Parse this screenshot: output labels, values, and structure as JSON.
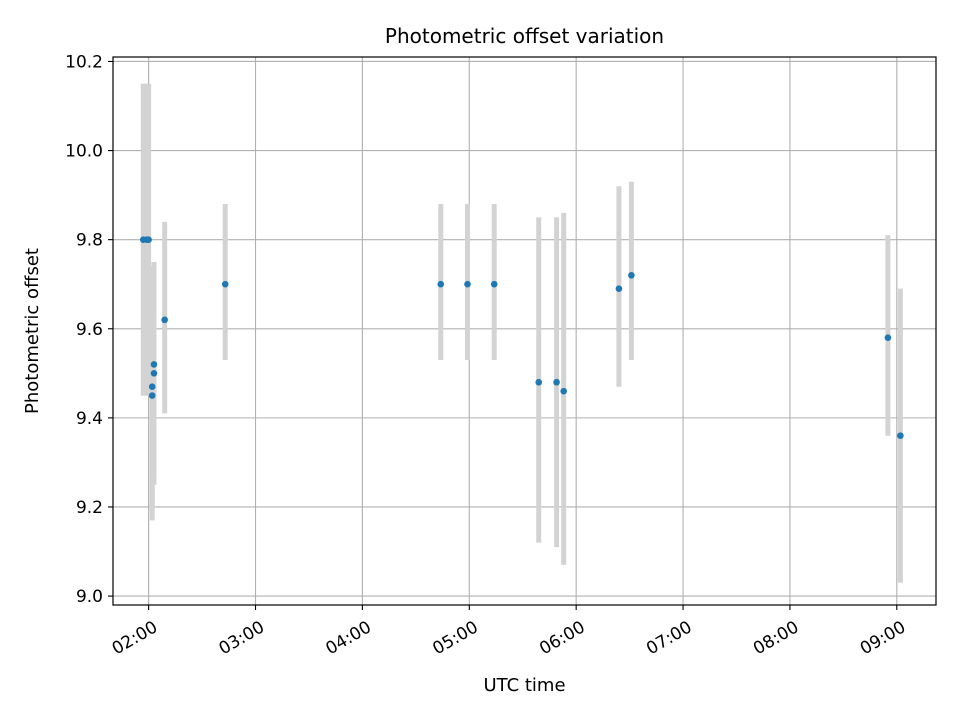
{
  "chart_data": {
    "type": "scatter",
    "title": "Photometric offset variation",
    "xlabel": "UTC time",
    "ylabel": "Photometric offset",
    "x_axis_kind": "time",
    "xlim": [
      "01:40",
      "09:22"
    ],
    "ylim": [
      8.98,
      10.21
    ],
    "x_ticks": [
      "02:00",
      "03:00",
      "04:00",
      "05:00",
      "06:00",
      "07:00",
      "08:00",
      "09:00"
    ],
    "y_ticks": [
      "9.0",
      "9.2",
      "9.4",
      "9.6",
      "9.8",
      "10.0",
      "10.2"
    ],
    "grid": true,
    "legend": "none",
    "colors": {
      "points": "#1f77b4",
      "error_bars": "#d3d3d3",
      "grid": "#b0b0b0",
      "axes": "#000000"
    },
    "series": [
      {
        "points": [
          {
            "x": "01:57",
            "y": 9.8,
            "y_low": 9.45,
            "y_high": 10.15
          },
          {
            "x": "01:59",
            "y": 9.8,
            "y_low": 9.45,
            "y_high": 10.15
          },
          {
            "x": "02:00",
            "y": 9.8,
            "y_low": 9.45,
            "y_high": 10.15
          },
          {
            "x": "02:02",
            "y": 9.45,
            "y_low": 9.17,
            "y_high": 9.73
          },
          {
            "x": "02:02",
            "y": 9.47,
            "y_low": 9.2,
            "y_high": 9.74
          },
          {
            "x": "02:03",
            "y": 9.5,
            "y_low": 9.25,
            "y_high": 9.75
          },
          {
            "x": "02:03",
            "y": 9.52,
            "y_low": 9.28,
            "y_high": 9.75
          },
          {
            "x": "02:09",
            "y": 9.62,
            "y_low": 9.41,
            "y_high": 9.84
          },
          {
            "x": "02:43",
            "y": 9.7,
            "y_low": 9.53,
            "y_high": 9.88
          },
          {
            "x": "04:44",
            "y": 9.7,
            "y_low": 9.53,
            "y_high": 9.88
          },
          {
            "x": "04:59",
            "y": 9.7,
            "y_low": 9.53,
            "y_high": 9.88
          },
          {
            "x": "05:14",
            "y": 9.7,
            "y_low": 9.53,
            "y_high": 9.88
          },
          {
            "x": "05:39",
            "y": 9.48,
            "y_low": 9.12,
            "y_high": 9.85
          },
          {
            "x": "05:49",
            "y": 9.48,
            "y_low": 9.11,
            "y_high": 9.85
          },
          {
            "x": "05:53",
            "y": 9.46,
            "y_low": 9.07,
            "y_high": 9.86
          },
          {
            "x": "06:24",
            "y": 9.69,
            "y_low": 9.47,
            "y_high": 9.92
          },
          {
            "x": "06:31",
            "y": 9.72,
            "y_low": 9.53,
            "y_high": 9.93
          },
          {
            "x": "08:55",
            "y": 9.58,
            "y_low": 9.36,
            "y_high": 9.81
          },
          {
            "x": "09:02",
            "y": 9.36,
            "y_low": 9.03,
            "y_high": 9.69
          }
        ]
      }
    ]
  }
}
